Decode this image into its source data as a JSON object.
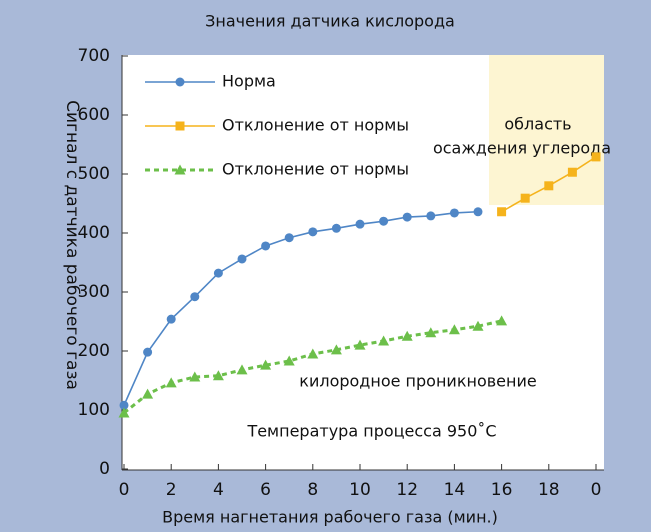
{
  "chart_data": {
    "type": "line",
    "title": "Значения датчика кислорода",
    "xlabel": "Время нагнетания рабочего газа (мин.)",
    "ylabel": "Сигнал с датчика рабочего газа",
    "annotations": [
      "область",
      "осаждения углерода",
      "килородное проникновение",
      "Температура процесса 950˚C"
    ],
    "xlim": [
      0,
      20
    ],
    "ylim": [
      0,
      700
    ],
    "xticks": [
      0,
      2,
      4,
      6,
      8,
      10,
      12,
      14,
      16,
      18,
      {
        "value": 20,
        "label": "0"
      }
    ],
    "yticks": [
      0,
      100,
      200,
      300,
      400,
      500,
      600,
      700
    ],
    "series": [
      {
        "name": "Норма",
        "color": "#4f86c6",
        "marker": "circle",
        "dash": false,
        "x": [
          0,
          1,
          2,
          3,
          4,
          5,
          6,
          7,
          8,
          9,
          10,
          11,
          12,
          13,
          14,
          15
        ],
        "values": [
          108,
          198,
          254,
          292,
          332,
          356,
          378,
          392,
          402,
          408,
          415,
          420,
          427,
          429,
          434,
          436
        ]
      },
      {
        "name": "Отклонение от нормы",
        "color": "#f5b31c",
        "marker": "square",
        "dash": false,
        "x": [
          16,
          17,
          18,
          19,
          20
        ],
        "values": [
          436,
          459,
          480,
          503,
          529
        ]
      },
      {
        "name": "Отклонение от нормы",
        "color": "#6cbf4a",
        "marker": "triangle",
        "dash": true,
        "x": [
          0,
          1,
          2,
          3,
          4,
          5,
          6,
          7,
          8,
          9,
          10,
          11,
          12,
          13,
          14,
          15,
          16
        ],
        "values": [
          95,
          127,
          146,
          156,
          158,
          168,
          176,
          183,
          195,
          202,
          210,
          217,
          225,
          231,
          236,
          242,
          251
        ]
      }
    ]
  }
}
